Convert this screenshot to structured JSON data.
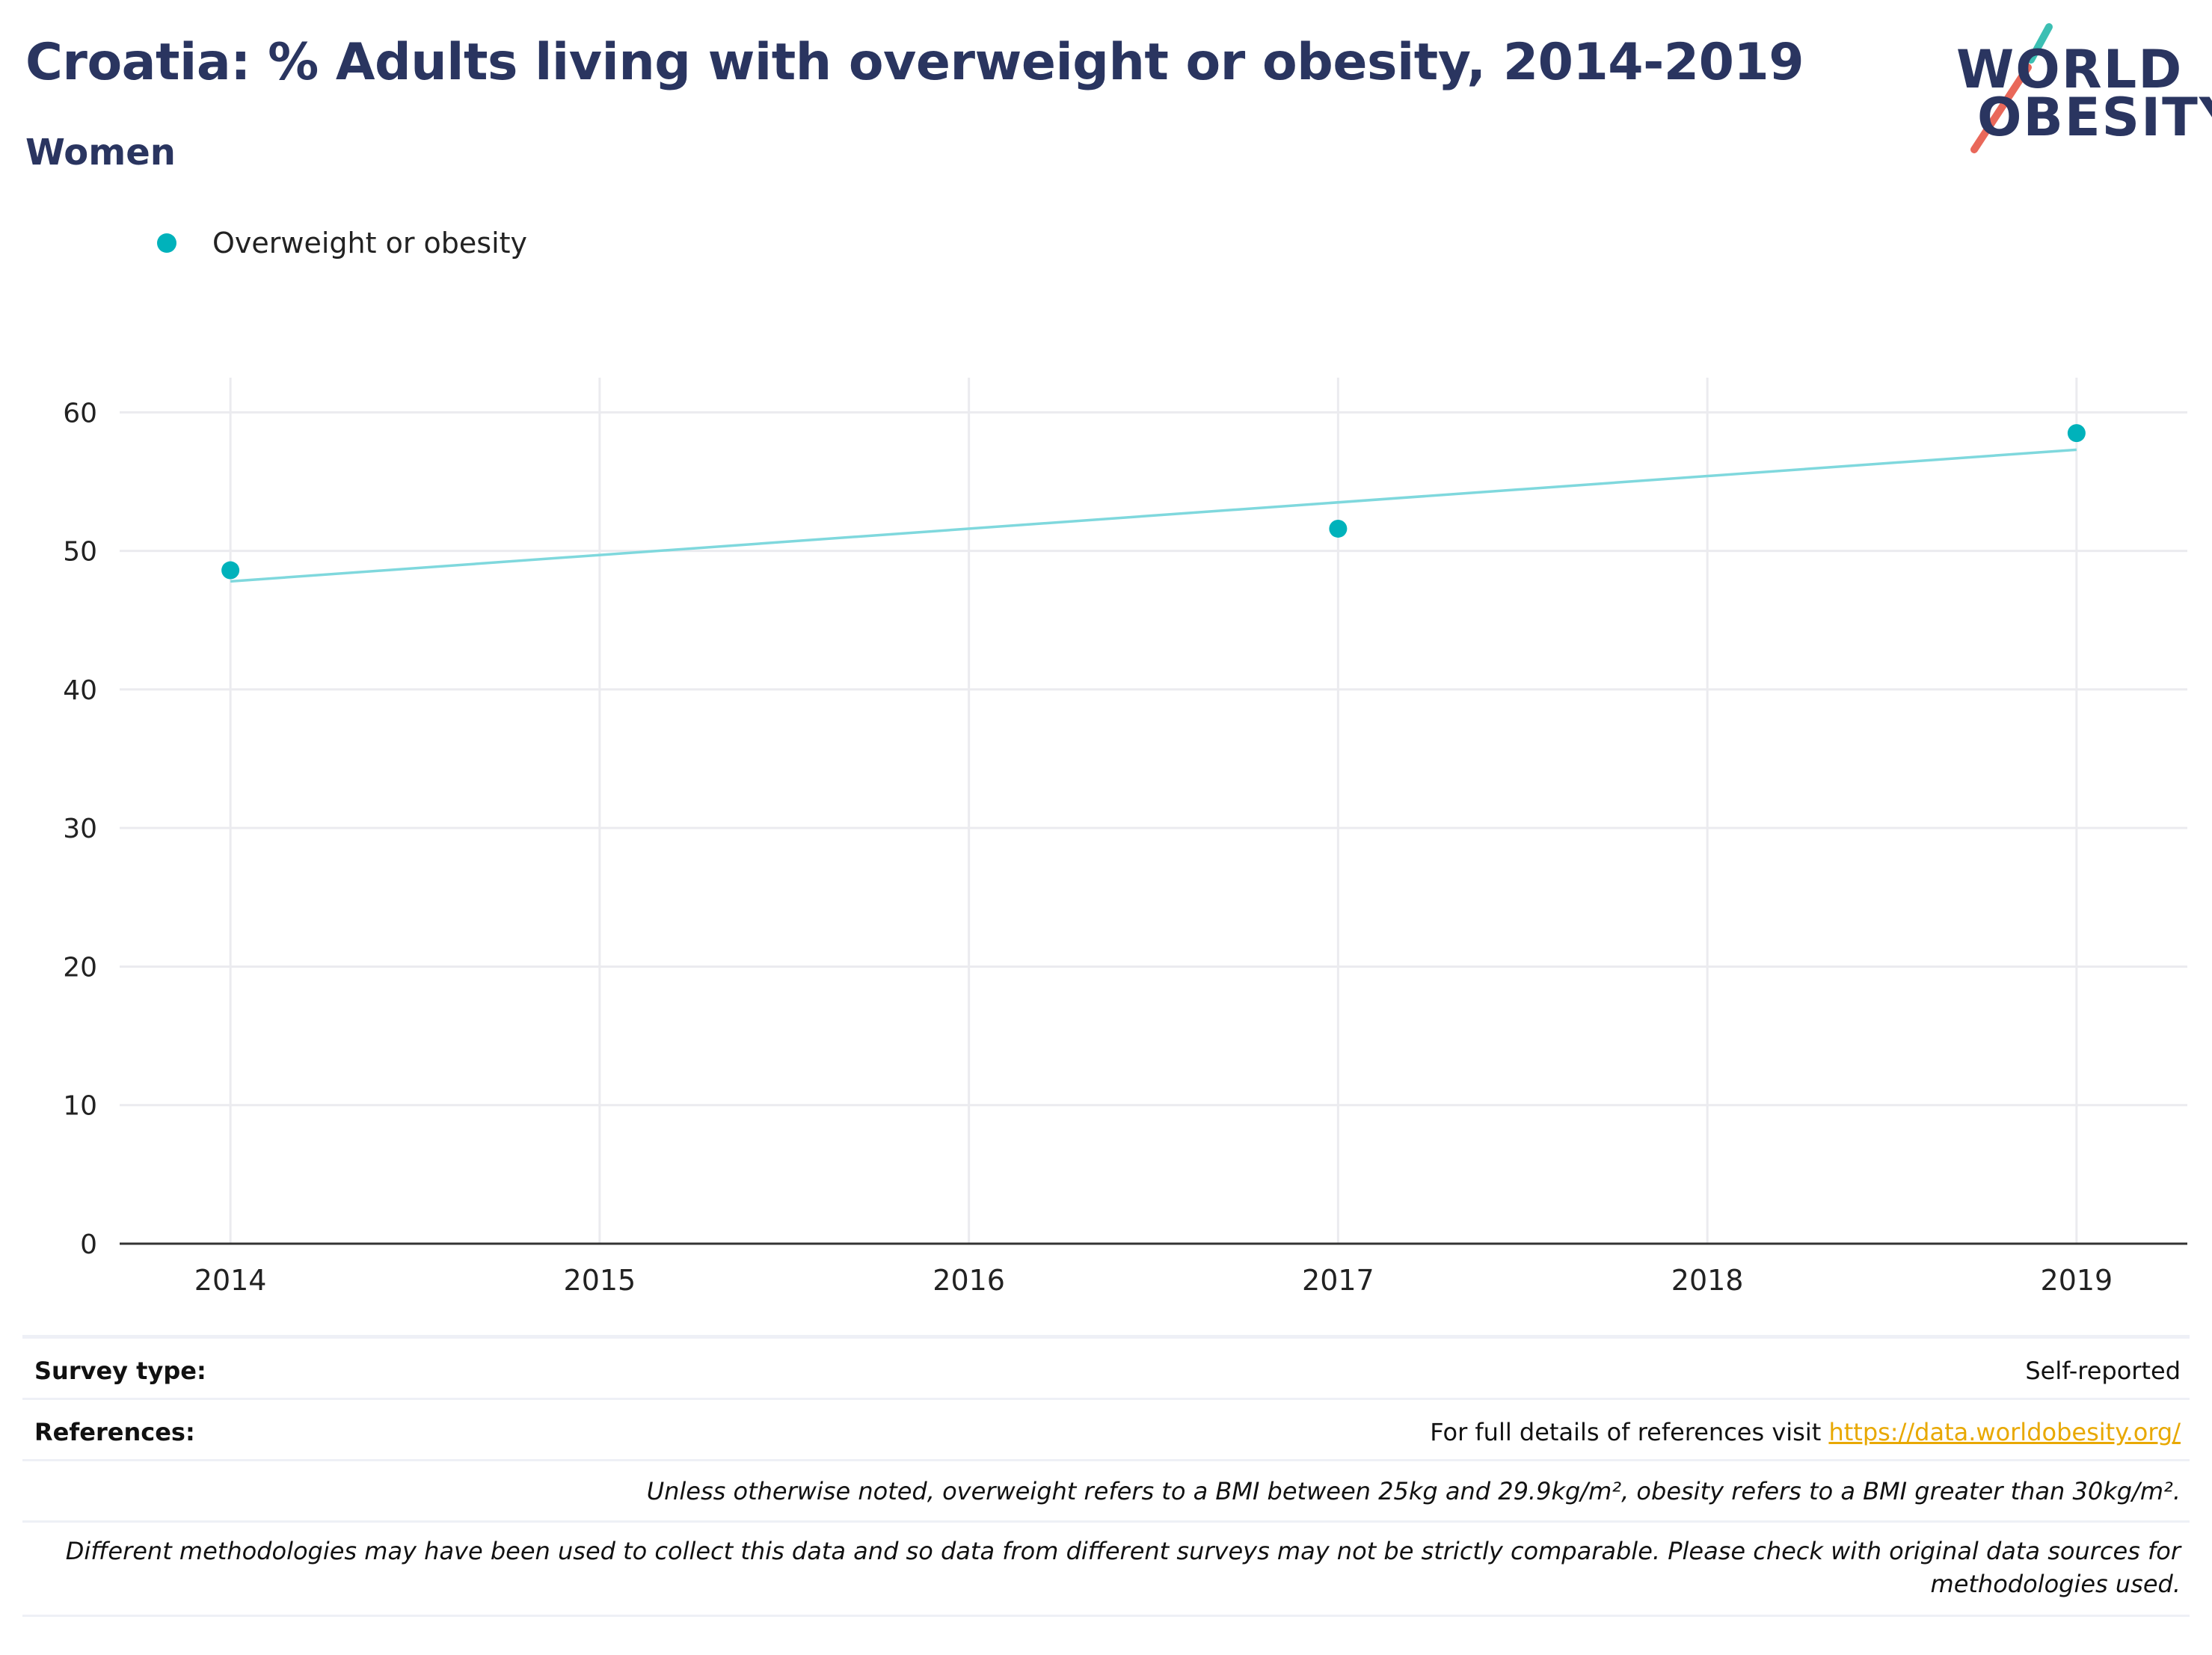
{
  "header": {
    "title": "Croatia: % Adults living with overweight or obesity, 2014-2019",
    "subtitle": "Women"
  },
  "logo": {
    "line1": "WORLD",
    "line2": "OBESITY"
  },
  "legend": {
    "label": "Overweight or obesity"
  },
  "colors": {
    "series": "#00b2bb",
    "trend": "#7fd8dd",
    "title": "#2a3560",
    "link": "#e8a800"
  },
  "chart_data": {
    "type": "scatter",
    "x": [
      2014,
      2017,
      2019
    ],
    "series": [
      {
        "name": "Overweight or obesity",
        "values": [
          48.6,
          51.6,
          58.5
        ]
      }
    ],
    "trendline": {
      "x": [
        2014,
        2019
      ],
      "y": [
        47.8,
        57.3
      ]
    },
    "xticks": [
      "2014",
      "2015",
      "2016",
      "2017",
      "2018",
      "2019"
    ],
    "yticks": [
      "0",
      "10",
      "20",
      "30",
      "40",
      "50",
      "60"
    ],
    "xlim": [
      2013.7,
      2019.3
    ],
    "ylim": [
      0,
      62.5
    ],
    "grid": true,
    "legend_position": "top-left"
  },
  "footer": {
    "survey_label": "Survey type:",
    "survey_value": "Self-reported",
    "references_label": "References:",
    "references_text": "For full details of references visit ",
    "references_link": "https://data.worldobesity.org/",
    "note1": "Unless otherwise noted, overweight refers to a BMI between 25kg and 29.9kg/m², obesity refers to a BMI greater than 30kg/m².",
    "note2_line1": "Different methodologies may have been used to collect this data and so data from different surveys may not be strictly comparable. Please check with original data sources for",
    "note2_line2": "methodologies used."
  }
}
